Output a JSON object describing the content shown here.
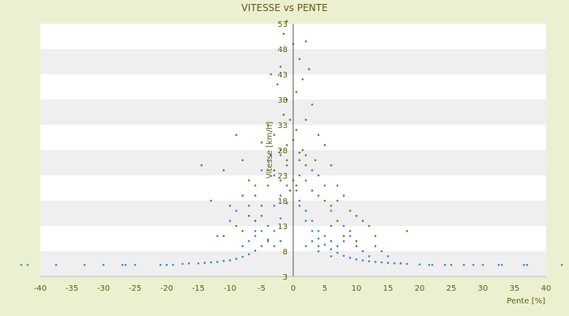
{
  "chart_data": {
    "type": "scatter",
    "title": "VITESSE vs PENTE",
    "xlabel": "Pente [%]",
    "ylabel": "Vitesse [km/h]",
    "xlim": [
      -40,
      40
    ],
    "ylim": [
      3,
      53
    ],
    "xticks": [
      "-40",
      "-35",
      "-30",
      "-25",
      "-20",
      "-15",
      "-10",
      "-5",
      "0",
      "5",
      "10",
      "15",
      "20",
      "25",
      "30",
      "35",
      "40"
    ],
    "yticks": [
      "3",
      "8",
      "13",
      "18",
      "23",
      "28",
      "33",
      "38",
      "43",
      "48",
      "53"
    ],
    "grid": "horizontal bands alternating white / light grey",
    "colors": {
      "series_blue": "#3a86d8",
      "series_olive": "#7c7c16",
      "text": "#5c5c14",
      "band": "#efefef"
    },
    "series": [
      {
        "color_key": "blue",
        "points": [
          [
            -43,
            5.3
          ],
          [
            -42,
            5.3
          ],
          [
            -37.5,
            5.3
          ],
          [
            -33,
            5.3
          ],
          [
            -30,
            5.3
          ],
          [
            -27,
            5.3
          ],
          [
            -26.5,
            5.3
          ],
          [
            -25,
            5.3
          ],
          [
            -21,
            5.3
          ],
          [
            -20,
            5.3
          ],
          [
            -19,
            5.3
          ],
          [
            -17.5,
            5.5
          ],
          [
            -16.5,
            5.6
          ],
          [
            -15,
            5.6
          ],
          [
            -14,
            5.7
          ],
          [
            -13,
            5.8
          ],
          [
            -12,
            5.9
          ],
          [
            -11,
            6.1
          ],
          [
            -10,
            6.2
          ],
          [
            -9,
            6.5
          ],
          [
            -8,
            6.9
          ],
          [
            -7,
            7.4
          ],
          [
            -6,
            8.1
          ],
          [
            -5,
            9.0
          ],
          [
            -4,
            10.3
          ],
          [
            -3,
            12.0
          ],
          [
            -2,
            14.5
          ],
          [
            -1,
            17.5
          ],
          [
            -0.5,
            20.0
          ],
          [
            0,
            22.0
          ],
          [
            0.5,
            20.0
          ],
          [
            1,
            17.0
          ],
          [
            2,
            14.0
          ],
          [
            3,
            12.0
          ],
          [
            4,
            10.5
          ],
          [
            5,
            9.3
          ],
          [
            6,
            8.4
          ],
          [
            7,
            7.7
          ],
          [
            8,
            7.1
          ],
          [
            9,
            6.7
          ],
          [
            10,
            6.4
          ],
          [
            11,
            6.2
          ],
          [
            12,
            6.0
          ],
          [
            13,
            5.9
          ],
          [
            14,
            5.8
          ],
          [
            15,
            5.7
          ],
          [
            16,
            5.6
          ],
          [
            17,
            5.6
          ],
          [
            18,
            5.5
          ],
          [
            20,
            5.4
          ],
          [
            21.5,
            5.3
          ],
          [
            22,
            5.3
          ],
          [
            24,
            5.3
          ],
          [
            25,
            5.3
          ],
          [
            27,
            5.3
          ],
          [
            28.5,
            5.3
          ],
          [
            30,
            5.3
          ],
          [
            32.5,
            5.3
          ],
          [
            33,
            5.3
          ],
          [
            36.5,
            5.3
          ],
          [
            37,
            5.3
          ],
          [
            42.5,
            5.3
          ],
          [
            -12,
            11
          ],
          [
            -10,
            14
          ],
          [
            -9,
            16
          ],
          [
            -8,
            19
          ],
          [
            -7,
            17
          ],
          [
            -6,
            21
          ],
          [
            -5,
            24
          ],
          [
            -4,
            26
          ],
          [
            -3,
            23
          ],
          [
            -2,
            27
          ],
          [
            -1,
            25
          ],
          [
            1,
            26
          ],
          [
            2,
            22
          ],
          [
            3,
            24
          ],
          [
            4,
            19
          ],
          [
            5,
            21
          ],
          [
            6,
            16
          ],
          [
            7,
            18
          ],
          [
            8,
            13
          ],
          [
            9,
            11
          ],
          [
            10,
            9
          ],
          [
            11,
            8
          ],
          [
            12,
            7
          ],
          [
            13,
            9
          ],
          [
            14,
            8
          ],
          [
            15,
            7
          ],
          [
            -6,
            12
          ],
          [
            -5,
            15
          ],
          [
            -4,
            13
          ],
          [
            -3,
            17
          ],
          [
            -2,
            19
          ],
          [
            -1,
            21
          ],
          [
            1,
            18
          ],
          [
            2,
            16
          ],
          [
            3,
            14
          ],
          [
            4,
            12
          ],
          [
            5,
            11
          ],
          [
            6,
            10
          ],
          [
            -8,
            9
          ],
          [
            -7,
            10
          ],
          [
            -6,
            11
          ],
          [
            -5,
            12
          ],
          [
            -3,
            9
          ],
          [
            -2,
            10
          ],
          [
            2,
            9
          ],
          [
            3,
            10
          ],
          [
            4,
            8
          ],
          [
            6,
            7
          ],
          [
            7,
            9
          ],
          [
            8,
            10
          ]
        ]
      },
      {
        "color_key": "olive",
        "points": [
          [
            -1,
            53.5
          ],
          [
            -1.5,
            51
          ],
          [
            2,
            49.5
          ],
          [
            0,
            49
          ],
          [
            1,
            46
          ],
          [
            -2,
            44.5
          ],
          [
            2.5,
            44
          ],
          [
            -3.5,
            43
          ],
          [
            1.5,
            42
          ],
          [
            -2.5,
            41
          ],
          [
            0.5,
            39.5
          ],
          [
            -1,
            38
          ],
          [
            3,
            37
          ],
          [
            -1.5,
            35
          ],
          [
            2,
            34
          ],
          [
            -4,
            33
          ],
          [
            -3,
            31
          ],
          [
            4,
            31
          ],
          [
            -9,
            31
          ],
          [
            -5,
            29.5
          ],
          [
            5,
            29
          ],
          [
            -2,
            28
          ],
          [
            1,
            27.5
          ],
          [
            -14.5,
            25
          ],
          [
            -11,
            24
          ],
          [
            -8,
            26
          ],
          [
            -7,
            22
          ],
          [
            6,
            25
          ],
          [
            7,
            21
          ],
          [
            -13,
            18
          ],
          [
            -10,
            17
          ],
          [
            -6,
            19
          ],
          [
            8,
            19
          ],
          [
            9,
            16
          ],
          [
            10,
            15
          ],
          [
            11,
            14
          ],
          [
            12,
            13
          ],
          [
            18,
            12
          ],
          [
            13,
            11
          ],
          [
            -3,
            24
          ],
          [
            -1,
            26
          ],
          [
            2,
            25
          ],
          [
            4,
            23
          ],
          [
            -4,
            21
          ],
          [
            3,
            20
          ],
          [
            -2,
            22
          ],
          [
            1,
            23
          ],
          [
            5,
            18
          ],
          [
            6,
            17
          ],
          [
            -5,
            17
          ],
          [
            -7,
            15
          ],
          [
            7,
            14
          ],
          [
            -9,
            13
          ],
          [
            9,
            12
          ],
          [
            -11,
            11
          ],
          [
            10,
            10
          ],
          [
            0,
            30
          ],
          [
            0.5,
            32
          ],
          [
            -0.5,
            34
          ],
          [
            1.5,
            28
          ],
          [
            -1,
            29
          ],
          [
            2,
            27
          ],
          [
            -3.5,
            27
          ],
          [
            3.5,
            26
          ],
          [
            0,
            22
          ],
          [
            -0.5,
            20
          ],
          [
            0.5,
            21
          ],
          [
            -6,
            14
          ],
          [
            6,
            13
          ],
          [
            -8,
            12
          ],
          [
            8,
            11
          ],
          [
            -4,
            10
          ],
          [
            4,
            9
          ]
        ]
      }
    ]
  }
}
